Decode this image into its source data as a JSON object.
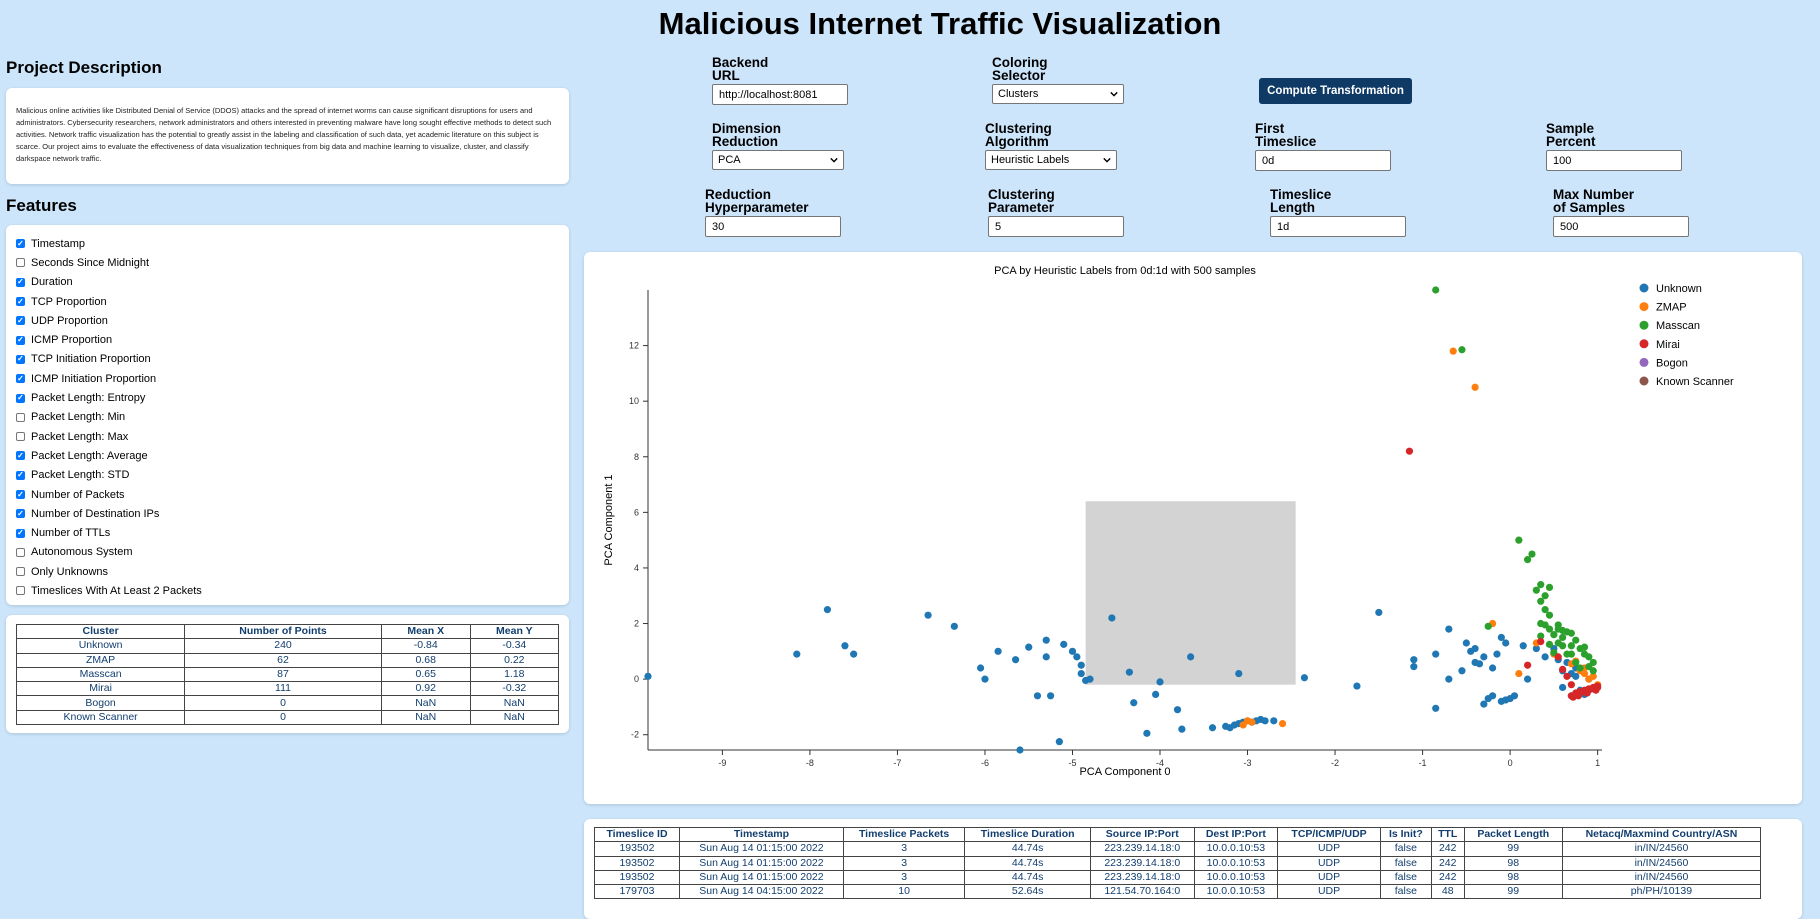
{
  "title": "Malicious Internet Traffic Visualization",
  "project": {
    "heading": "Project Description",
    "description": "Malicious online activities like Distributed Denial of Service (DDOS) attacks and the spread of internet worms can cause significant disruptions for users and administrators. Cybersecurity researchers, network administrators and others interested in preventing malware have long sought effective methods to detect such activities. Network traffic visualization has the potential to greatly assist in the labeling and classification of such data, yet academic literature on this subject is scarce. Our project aims to evaluate the effectiveness of data visualization techniques from big data and machine learning to visualize, cluster, and classify darkspace network traffic."
  },
  "features": {
    "heading": "Features",
    "items": [
      {
        "label": "Timestamp",
        "checked": true
      },
      {
        "label": "Seconds Since Midnight",
        "checked": false
      },
      {
        "label": "Duration",
        "checked": true
      },
      {
        "label": "TCP Proportion",
        "checked": true
      },
      {
        "label": "UDP Proportion",
        "checked": true
      },
      {
        "label": "ICMP Proportion",
        "checked": true
      },
      {
        "label": "TCP Initiation Proportion",
        "checked": true
      },
      {
        "label": "ICMP Initiation Proportion",
        "checked": true
      },
      {
        "label": "Packet Length: Entropy",
        "checked": true
      },
      {
        "label": "Packet Length: Min",
        "checked": false
      },
      {
        "label": "Packet Length: Max",
        "checked": false
      },
      {
        "label": "Packet Length: Average",
        "checked": true
      },
      {
        "label": "Packet Length: STD",
        "checked": true
      },
      {
        "label": "Number of Packets",
        "checked": true
      },
      {
        "label": "Number of Destination IPs",
        "checked": true
      },
      {
        "label": "Number of TTLs",
        "checked": true
      },
      {
        "label": "Autonomous System",
        "checked": false
      },
      {
        "label": "Only Unknowns",
        "checked": false
      },
      {
        "label": "Timeslices With At Least 2 Packets",
        "checked": false
      }
    ]
  },
  "stats": {
    "headers": [
      "Cluster",
      "Number of Points",
      "Mean X",
      "Mean Y"
    ],
    "rows": [
      [
        "Unknown",
        "240",
        "-0.84",
        "-0.34"
      ],
      [
        "ZMAP",
        "62",
        "0.68",
        "0.22"
      ],
      [
        "Masscan",
        "87",
        "0.65",
        "1.18"
      ],
      [
        "Mirai",
        "111",
        "0.92",
        "-0.32"
      ],
      [
        "Bogon",
        "0",
        "NaN",
        "NaN"
      ],
      [
        "Known Scanner",
        "0",
        "NaN",
        "NaN"
      ]
    ]
  },
  "controls": {
    "backend": {
      "label1": "Backend",
      "label2": "URL",
      "value": "http://localhost:8081"
    },
    "coloring": {
      "label1": "Coloring",
      "label2": "Selector",
      "value": "Clusters"
    },
    "compute_label": "Compute Transformation",
    "dimension": {
      "label1": "Dimension",
      "label2": "Reduction",
      "value": "PCA"
    },
    "clustering_algo": {
      "label1": "Clustering",
      "label2": "Algorithm",
      "value": "Heuristic Labels"
    },
    "first_timeslice": {
      "label1": "First",
      "label2": "Timeslice",
      "value": "0d"
    },
    "sample_percent": {
      "label1": "Sample",
      "label2": "Percent",
      "value": "100"
    },
    "reduction_hyper": {
      "label1": "Reduction",
      "label2": "Hyperparameter",
      "value": "30"
    },
    "clustering_param": {
      "label1": "Clustering",
      "label2": "Parameter",
      "value": "5"
    },
    "timeslice_length": {
      "label1": "Timeslice",
      "label2": "Length",
      "value": "1d"
    },
    "max_samples": {
      "label1": "Max Number",
      "label2": "of Samples",
      "value": "500"
    }
  },
  "chart_data": {
    "type": "scatter",
    "title": "PCA by Heuristic Labels from 0d:1d with 500 samples",
    "xlabel": "PCA Component 0",
    "ylabel": "PCA Component 1",
    "xlim": [
      -9.85,
      1.05
    ],
    "ylim": [
      -2.55,
      14.0
    ],
    "xticks": [
      -9,
      -8,
      -7,
      -6,
      -5,
      -4,
      -3,
      -2,
      -1,
      0,
      1
    ],
    "yticks": [
      -2,
      0,
      2,
      4,
      6,
      8,
      10,
      12
    ],
    "legend_position": "top-right",
    "brush": {
      "x0": -4.85,
      "x1": -2.45,
      "y0": -0.2,
      "y1": 6.4
    },
    "series": [
      {
        "name": "Unknown",
        "color": "#1f77b4",
        "points": [
          [
            -9.85,
            0.1
          ],
          [
            -8.15,
            0.9
          ],
          [
            -7.8,
            2.5
          ],
          [
            -7.6,
            1.2
          ],
          [
            -7.5,
            0.9
          ],
          [
            -6.65,
            2.3
          ],
          [
            -6.35,
            1.9
          ],
          [
            -6.05,
            0.4
          ],
          [
            -6.0,
            0.0
          ],
          [
            -5.85,
            1.0
          ],
          [
            -5.65,
            0.7
          ],
          [
            -5.5,
            1.15
          ],
          [
            -5.4,
            -0.6
          ],
          [
            -5.3,
            0.8
          ],
          [
            -5.3,
            1.4
          ],
          [
            -5.25,
            -0.6
          ],
          [
            -5.15,
            -2.25
          ],
          [
            -5.1,
            1.25
          ],
          [
            -5.0,
            1.0
          ],
          [
            -4.95,
            0.8
          ],
          [
            -4.9,
            0.5
          ],
          [
            -4.9,
            0.2
          ],
          [
            -4.85,
            -0.05
          ],
          [
            -4.8,
            -0.0
          ],
          [
            -4.55,
            2.2
          ],
          [
            -4.35,
            0.25
          ],
          [
            -4.3,
            -0.85
          ],
          [
            -4.15,
            -1.95
          ],
          [
            -4.05,
            -0.55
          ],
          [
            -4.0,
            -0.1
          ],
          [
            -3.8,
            -1.1
          ],
          [
            -3.75,
            -1.8
          ],
          [
            -3.65,
            0.8
          ],
          [
            -3.4,
            -1.75
          ],
          [
            -3.25,
            -1.7
          ],
          [
            -3.2,
            -1.75
          ],
          [
            -3.15,
            -1.65
          ],
          [
            -3.1,
            -1.6
          ],
          [
            -3.05,
            -1.55
          ],
          [
            -3.0,
            -1.5
          ],
          [
            -2.95,
            -1.55
          ],
          [
            -2.9,
            -1.5
          ],
          [
            -2.85,
            -1.45
          ],
          [
            -2.8,
            -1.5
          ],
          [
            -2.7,
            -1.5
          ],
          [
            -3.1,
            0.2
          ],
          [
            -5.6,
            -2.55
          ],
          [
            -2.35,
            0.05
          ],
          [
            -1.75,
            -0.25
          ],
          [
            -1.5,
            2.4
          ],
          [
            -1.1,
            0.7
          ],
          [
            -1.1,
            0.45
          ],
          [
            -0.85,
            -1.05
          ],
          [
            -0.85,
            0.9
          ],
          [
            -0.7,
            1.8
          ],
          [
            -0.7,
            0.0
          ],
          [
            -0.55,
            0.3
          ],
          [
            -0.5,
            1.3
          ],
          [
            -0.45,
            1.0
          ],
          [
            -0.4,
            1.1
          ],
          [
            -0.4,
            0.6
          ],
          [
            -0.35,
            0.55
          ],
          [
            -0.3,
            0.8
          ],
          [
            -0.3,
            -0.9
          ],
          [
            -0.25,
            -0.7
          ],
          [
            -0.2,
            0.4
          ],
          [
            -0.2,
            -0.6
          ],
          [
            -0.15,
            0.9
          ],
          [
            -0.1,
            -0.8
          ],
          [
            -0.05,
            -0.75
          ],
          [
            -0.05,
            1.3
          ],
          [
            -0.1,
            1.5
          ],
          [
            0.0,
            -0.7
          ],
          [
            0.05,
            -0.6
          ],
          [
            0.15,
            1.2
          ],
          [
            0.2,
            0.0
          ],
          [
            0.3,
            1.1
          ],
          [
            0.4,
            0.8
          ],
          [
            0.5,
            1.1
          ],
          [
            0.55,
            0.7
          ],
          [
            0.6,
            0.3
          ],
          [
            0.65,
            0.6
          ],
          [
            0.7,
            0.2
          ],
          [
            0.75,
            0.1
          ],
          [
            0.8,
            -0.4
          ],
          [
            0.85,
            -0.55
          ],
          [
            0.7,
            -0.6
          ],
          [
            0.6,
            -0.3
          ],
          [
            0.9,
            0.0
          ],
          [
            0.75,
            0.4
          ]
        ]
      },
      {
        "name": "ZMAP",
        "color": "#ff7f0e",
        "points": [
          [
            -0.65,
            11.8
          ],
          [
            -0.4,
            10.5
          ],
          [
            -2.6,
            -1.6
          ],
          [
            -3.0,
            -1.5
          ],
          [
            -3.05,
            -1.65
          ],
          [
            -2.95,
            -1.55
          ],
          [
            0.1,
            0.2
          ],
          [
            0.5,
            0.9
          ],
          [
            0.75,
            0.65
          ],
          [
            0.85,
            0.4
          ],
          [
            0.9,
            0.0
          ],
          [
            0.95,
            0.1
          ],
          [
            1.0,
            -0.2
          ],
          [
            0.85,
            0.2
          ],
          [
            0.7,
            0.55
          ],
          [
            0.8,
            0.3
          ],
          [
            -0.2,
            2.0
          ],
          [
            0.3,
            1.3
          ]
        ]
      },
      {
        "name": "Masscan",
        "color": "#2ca02c",
        "points": [
          [
            -0.85,
            14.0
          ],
          [
            -0.55,
            11.85
          ],
          [
            0.1,
            5.0
          ],
          [
            0.2,
            4.3
          ],
          [
            0.25,
            4.5
          ],
          [
            0.3,
            3.2
          ],
          [
            0.35,
            3.4
          ],
          [
            0.4,
            3.0
          ],
          [
            0.45,
            3.3
          ],
          [
            0.35,
            2.8
          ],
          [
            0.4,
            2.5
          ],
          [
            0.45,
            2.3
          ],
          [
            0.35,
            2.0
          ],
          [
            0.45,
            1.8
          ],
          [
            0.5,
            1.6
          ],
          [
            0.55,
            1.8
          ],
          [
            0.6,
            1.5
          ],
          [
            0.65,
            1.7
          ],
          [
            0.7,
            1.2
          ],
          [
            0.75,
            1.4
          ],
          [
            0.8,
            1.1
          ],
          [
            0.85,
            0.9
          ],
          [
            0.9,
            0.8
          ],
          [
            0.95,
            0.6
          ],
          [
            0.55,
            1.3
          ],
          [
            0.6,
            1.2
          ],
          [
            0.65,
            0.9
          ],
          [
            0.7,
            0.9
          ],
          [
            0.75,
            0.6
          ],
          [
            0.8,
            0.4
          ],
          [
            -0.25,
            1.9
          ],
          [
            0.5,
            0.95
          ],
          [
            0.45,
            1.25
          ],
          [
            0.35,
            1.55
          ],
          [
            0.4,
            1.95
          ],
          [
            0.55,
            1.95
          ],
          [
            0.6,
            1.75
          ],
          [
            0.7,
            1.65
          ],
          [
            0.85,
            1.15
          ],
          [
            0.9,
            0.45
          ],
          [
            0.95,
            0.3
          ]
        ]
      },
      {
        "name": "Mirai",
        "color": "#d62728",
        "points": [
          [
            -1.15,
            8.2
          ],
          [
            0.2,
            0.5
          ],
          [
            0.35,
            1.35
          ],
          [
            0.7,
            -0.6
          ],
          [
            0.75,
            -0.5
          ],
          [
            0.8,
            -0.45
          ],
          [
            0.85,
            -0.4
          ],
          [
            0.9,
            -0.35
          ],
          [
            0.95,
            -0.3
          ],
          [
            1.0,
            -0.25
          ],
          [
            0.75,
            -0.55
          ],
          [
            0.8,
            -0.5
          ],
          [
            0.85,
            -0.45
          ],
          [
            0.9,
            -0.4
          ],
          [
            0.95,
            -0.35
          ],
          [
            1.0,
            -0.3
          ],
          [
            0.72,
            -0.65
          ],
          [
            0.78,
            -0.6
          ],
          [
            0.88,
            -0.5
          ],
          [
            0.98,
            -0.4
          ],
          [
            0.65,
            0.1
          ],
          [
            0.7,
            -0.2
          ],
          [
            0.55,
            0.8
          ],
          [
            0.6,
            0.35
          ]
        ]
      },
      {
        "name": "Bogon",
        "color": "#9467bd",
        "points": []
      },
      {
        "name": "Known Scanner",
        "color": "#8c564b",
        "points": []
      }
    ]
  },
  "data_table": {
    "headers": [
      "Timeslice ID",
      "Timestamp",
      "Timeslice Packets",
      "Timeslice Duration",
      "Source IP:Port",
      "Dest IP:Port",
      "TCP/ICMP/UDP",
      "Is Init?",
      "TTL",
      "Packet Length",
      "Netacq/Maxmind Country/ASN"
    ],
    "rows": [
      [
        "193502",
        "Sun Aug 14 01:15:00 2022",
        "3",
        "44.74s",
        "223.239.14.18:0",
        "10.0.0.10:53",
        "UDP",
        "false",
        "242",
        "99",
        "in/IN/24560"
      ],
      [
        "193502",
        "Sun Aug 14 01:15:00 2022",
        "3",
        "44.74s",
        "223.239.14.18:0",
        "10.0.0.10:53",
        "UDP",
        "false",
        "242",
        "98",
        "in/IN/24560"
      ],
      [
        "193502",
        "Sun Aug 14 01:15:00 2022",
        "3",
        "44.74s",
        "223.239.14.18:0",
        "10.0.0.10:53",
        "UDP",
        "false",
        "242",
        "98",
        "in/IN/24560"
      ],
      [
        "179703",
        "Sun Aug 14 04:15:00 2022",
        "10",
        "52.64s",
        "121.54.70.164:0",
        "10.0.0.10:53",
        "UDP",
        "false",
        "48",
        "99",
        "ph/PH/10139"
      ]
    ]
  }
}
